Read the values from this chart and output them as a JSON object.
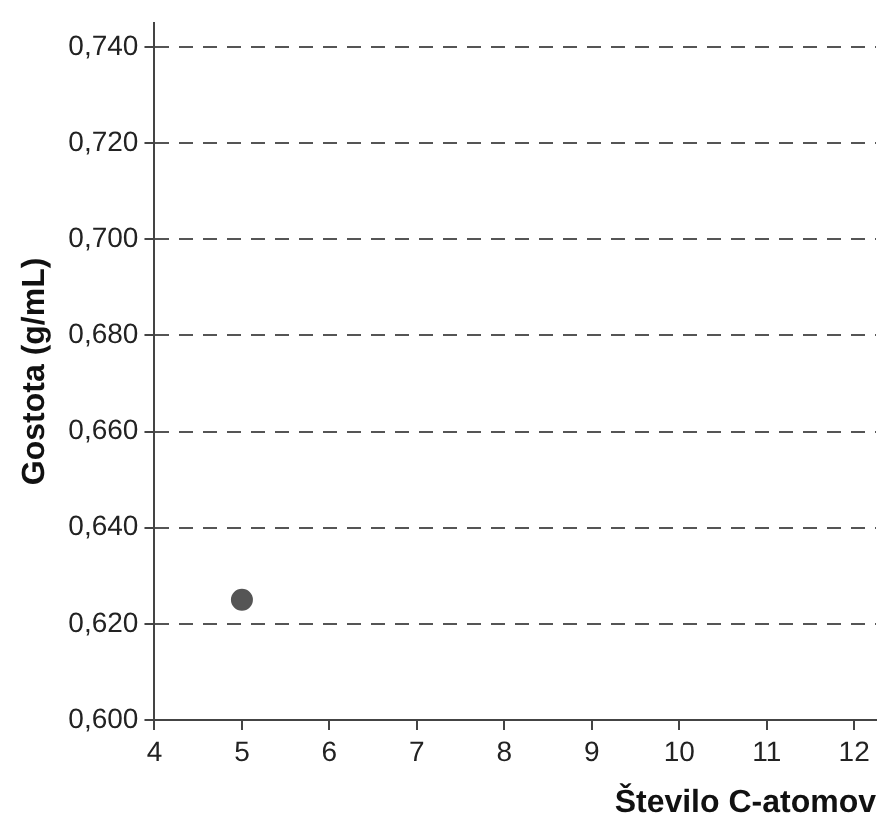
{
  "chart_data": {
    "type": "scatter",
    "xlabel": "Število C-atomov",
    "ylabel": "Gostota (g/mL)",
    "x": [
      5
    ],
    "values": [
      0.625
    ],
    "color": "#555555",
    "marker": "circle",
    "xlim": [
      4,
      12.25
    ],
    "xticks": [
      4,
      5,
      6,
      7,
      8,
      9,
      10,
      11,
      12
    ],
    "ylim": [
      0.6,
      0.745
    ],
    "yticks": [
      {
        "value": 0.6,
        "label": "0,600"
      },
      {
        "value": 0.62,
        "label": "0,620"
      },
      {
        "value": 0.64,
        "label": "0,640"
      },
      {
        "value": 0.66,
        "label": "0,660"
      },
      {
        "value": 0.68,
        "label": "0,680"
      },
      {
        "value": 0.7,
        "label": "0,700"
      },
      {
        "value": 0.72,
        "label": "0,720"
      },
      {
        "value": 0.74,
        "label": "0,740"
      }
    ],
    "grid": "y",
    "legend": false
  }
}
